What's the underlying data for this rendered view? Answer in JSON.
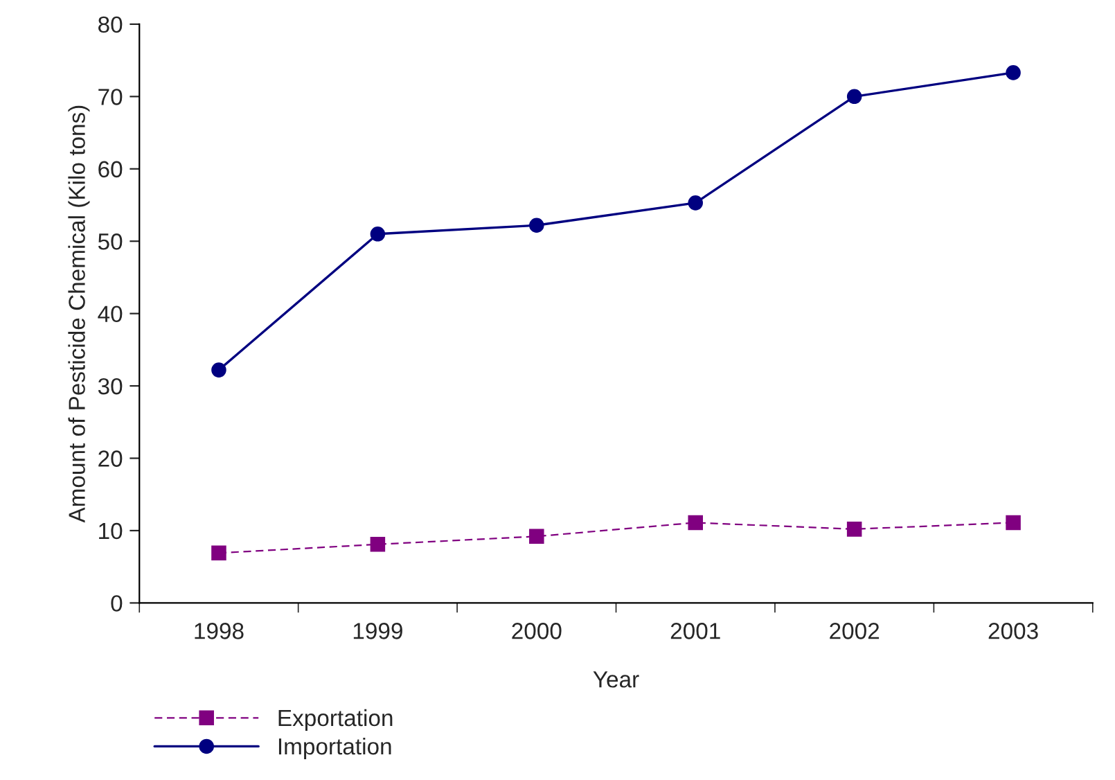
{
  "chart_data": {
    "type": "line",
    "xlabel": "Year",
    "ylabel": "Amount of Pesticide Chemical (Kilo tons)",
    "categories": [
      "1998",
      "1999",
      "2000",
      "2001",
      "2002",
      "2003"
    ],
    "series": [
      {
        "name": "Exportation",
        "color": "#800080",
        "values": [
          6.9,
          8.1,
          9.2,
          11.1,
          10.2,
          11.1
        ],
        "marker": "square",
        "line_style": "dashed"
      },
      {
        "name": "Importation",
        "color": "#000080",
        "values": [
          32.2,
          51.0,
          52.2,
          55.3,
          70.0,
          73.3
        ],
        "marker": "circle",
        "line_style": "solid"
      }
    ],
    "ylim": [
      0,
      80
    ],
    "yticks": [
      0,
      10,
      20,
      30,
      40,
      50,
      60,
      70,
      80
    ],
    "grid": false,
    "legend": "bottom left"
  }
}
